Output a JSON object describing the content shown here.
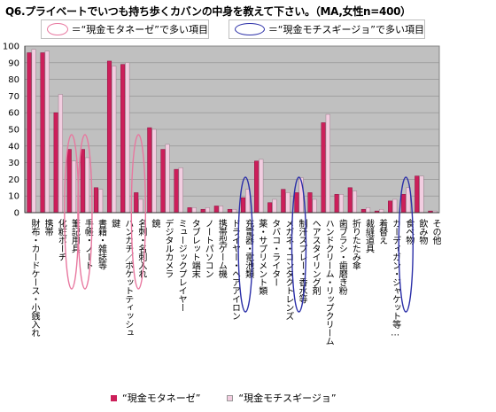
{
  "title": "Q6.プライベートでいつも持ち歩くカバンの中身を教えて下さい。（MA,女性n=400）",
  "annotations": {
    "pink_label": "＝“現金モタネーゼ”で多い項目",
    "blue_label": "＝“現金モチスギージョ”で多い項目"
  },
  "colors": {
    "series1": "#cc1f5a",
    "series2": "#f2cde0",
    "pink_circle": "#e8779f",
    "blue_circle": "#2b2fa8",
    "plot_bg": "#c0c0c0"
  },
  "chart_data": {
    "type": "bar",
    "ylim": [
      0,
      100
    ],
    "yticks": [
      0,
      10,
      20,
      30,
      40,
      50,
      60,
      70,
      80,
      90,
      100
    ],
    "grid": true,
    "categories": [
      "財布・カードケース・小銭入れ",
      "携帯",
      "化粧ポーチ",
      "筆記用具",
      "手帳・ノート",
      "書籍・雑誌等",
      "鍵",
      "ハンカチ／ポケットティッシュ",
      "名刺・名刺入れ",
      "鏡",
      "デジタルカメラ",
      "ミュージックプレイヤー",
      "タブレット端末",
      "ノートパソコン",
      "携帯型ゲーム機",
      "ドライヤー・ヘアアイロン",
      "充電器・電池類",
      "薬・サプリメント類",
      "タバコ・ライター",
      "メガネ・コンタクトレンズ",
      "制汗スプレー・香水等",
      "ヘアスタイリング剤",
      "ハンドクリーム・リップクリーム",
      "歯ブラシ・歯磨き粉",
      "折りたたみ傘",
      "裁縫道具",
      "着替え",
      "カーディガン・ジャケット等…",
      "食べ物",
      "飲み物",
      "その他"
    ],
    "series": [
      {
        "name": "“現金モタネーゼ”",
        "values": [
          96,
          96,
          60,
          38,
          38,
          15,
          91,
          89,
          12,
          51,
          38,
          26,
          3,
          2,
          4,
          2,
          9,
          31,
          6,
          14,
          12,
          12,
          54,
          11,
          15,
          2,
          1,
          7,
          11,
          22,
          1
        ]
      },
      {
        "name": "“現金モチスギージョ”",
        "values": [
          98,
          97,
          71,
          31,
          33,
          14,
          88,
          90,
          8,
          50,
          41,
          27,
          3,
          3,
          4,
          2,
          14,
          32,
          8,
          12,
          21,
          8,
          59,
          11,
          13,
          3,
          2,
          8,
          15,
          22,
          1
        ]
      }
    ],
    "pink_circled": [
      3,
      4,
      8
    ],
    "blue_circled": [
      16,
      20,
      28
    ]
  },
  "bottom_legend": {
    "series1_label": "“現金モタネーゼ”",
    "series2_label": "“現金モチスギージョ”"
  }
}
